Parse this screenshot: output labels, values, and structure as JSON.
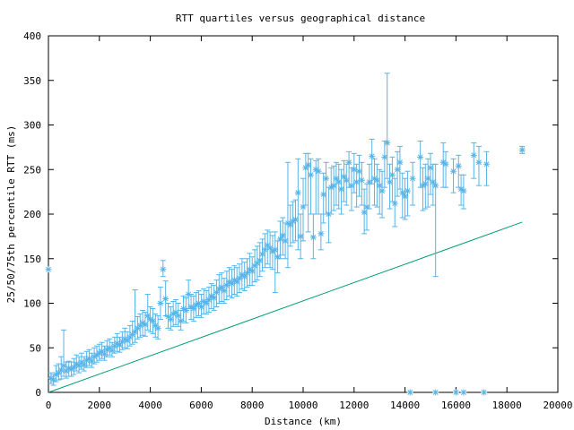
{
  "chart_data": {
    "type": "scatter",
    "title": "RTT quartiles versus geographical distance",
    "xlabel": "Distance (km)",
    "ylabel": "25/50/75th percentile RTT (ms)",
    "xlim": [
      0,
      20000
    ],
    "ylim": [
      0,
      400
    ],
    "xticks": [
      0,
      2000,
      4000,
      6000,
      8000,
      10000,
      12000,
      14000,
      16000,
      18000,
      20000
    ],
    "yticks": [
      0,
      50,
      100,
      150,
      200,
      250,
      300,
      350,
      400
    ],
    "grid": false,
    "legend": "none",
    "colors": {
      "points": "#56b4e9",
      "reference_line": "#009e73"
    },
    "series": [
      {
        "kind": "median_with_quartile_errorbars",
        "points": [
          [
            0,
            138,
            138,
            138
          ],
          [
            100,
            16,
            10,
            22
          ],
          [
            200,
            14,
            8,
            20
          ],
          [
            300,
            20,
            12,
            30
          ],
          [
            400,
            22,
            14,
            32
          ],
          [
            500,
            25,
            15,
            40
          ],
          [
            600,
            30,
            18,
            70
          ],
          [
            700,
            24,
            16,
            34
          ],
          [
            800,
            27,
            18,
            35
          ],
          [
            900,
            26,
            18,
            34
          ],
          [
            1000,
            28,
            20,
            38
          ],
          [
            1100,
            32,
            24,
            42
          ],
          [
            1200,
            30,
            22,
            40
          ],
          [
            1300,
            34,
            26,
            44
          ],
          [
            1400,
            31,
            24,
            40
          ],
          [
            1500,
            36,
            28,
            46
          ],
          [
            1600,
            38,
            30,
            48
          ],
          [
            1700,
            35,
            28,
            44
          ],
          [
            1800,
            40,
            32,
            50
          ],
          [
            1900,
            42,
            34,
            52
          ],
          [
            2000,
            44,
            36,
            54
          ],
          [
            2100,
            46,
            38,
            56
          ],
          [
            2200,
            43,
            36,
            52
          ],
          [
            2300,
            48,
            40,
            58
          ],
          [
            2400,
            50,
            42,
            60
          ],
          [
            2500,
            47,
            40,
            56
          ],
          [
            2600,
            52,
            44,
            62
          ],
          [
            2700,
            55,
            46,
            66
          ],
          [
            2800,
            53,
            45,
            62
          ],
          [
            2900,
            57,
            48,
            68
          ],
          [
            3000,
            60,
            50,
            72
          ],
          [
            3100,
            58,
            49,
            68
          ],
          [
            3200,
            62,
            52,
            75
          ],
          [
            3300,
            65,
            54,
            80
          ],
          [
            3400,
            68,
            56,
            115
          ],
          [
            3500,
            72,
            60,
            85
          ],
          [
            3600,
            75,
            62,
            88
          ],
          [
            3700,
            78,
            64,
            92
          ],
          [
            3800,
            76,
            63,
            90
          ],
          [
            3900,
            86,
            70,
            110
          ],
          [
            4000,
            82,
            68,
            96
          ],
          [
            4100,
            80,
            66,
            94
          ],
          [
            4200,
            75,
            62,
            88
          ],
          [
            4300,
            72,
            60,
            86
          ],
          [
            4400,
            100,
            82,
            118
          ],
          [
            4500,
            138,
            130,
            148
          ],
          [
            4600,
            105,
            86,
            125
          ],
          [
            4700,
            85,
            72,
            100
          ],
          [
            4800,
            82,
            70,
            96
          ],
          [
            4900,
            88,
            74,
            102
          ],
          [
            5000,
            90,
            76,
            104
          ],
          [
            5100,
            86,
            74,
            100
          ],
          [
            5200,
            80,
            70,
            92
          ],
          [
            5300,
            94,
            80,
            108
          ],
          [
            5400,
            92,
            78,
            106
          ],
          [
            5500,
            110,
            94,
            126
          ],
          [
            5600,
            96,
            82,
            110
          ],
          [
            5700,
            94,
            80,
            108
          ],
          [
            5800,
            98,
            84,
            112
          ],
          [
            5900,
            100,
            86,
            114
          ],
          [
            6000,
            96,
            84,
            110
          ],
          [
            6100,
            102,
            88,
            116
          ],
          [
            6200,
            100,
            88,
            114
          ],
          [
            6300,
            104,
            90,
            118
          ],
          [
            6400,
            108,
            94,
            122
          ],
          [
            6500,
            106,
            92,
            120
          ],
          [
            6600,
            112,
            96,
            126
          ],
          [
            6700,
            116,
            100,
            132
          ],
          [
            6800,
            118,
            102,
            134
          ],
          [
            6900,
            114,
            100,
            128
          ],
          [
            7000,
            120,
            104,
            136
          ],
          [
            7100,
            124,
            108,
            140
          ],
          [
            7200,
            122,
            106,
            138
          ],
          [
            7300,
            126,
            110,
            142
          ],
          [
            7400,
            124,
            108,
            140
          ],
          [
            7500,
            128,
            112,
            144
          ],
          [
            7600,
            132,
            116,
            150
          ],
          [
            7700,
            130,
            114,
            146
          ],
          [
            7800,
            134,
            118,
            150
          ],
          [
            7900,
            138,
            120,
            156
          ],
          [
            8000,
            136,
            120,
            152
          ],
          [
            8100,
            142,
            124,
            160
          ],
          [
            8200,
            145,
            126,
            164
          ],
          [
            8300,
            148,
            130,
            168
          ],
          [
            8400,
            155,
            136,
            172
          ],
          [
            8500,
            160,
            140,
            178
          ],
          [
            8600,
            165,
            144,
            182
          ],
          [
            8700,
            162,
            140,
            180
          ],
          [
            8800,
            158,
            138,
            176
          ],
          [
            8900,
            160,
            112,
            180
          ],
          [
            9000,
            152,
            134,
            170
          ],
          [
            9100,
            172,
            150,
            192
          ],
          [
            9200,
            176,
            154,
            196
          ],
          [
            9300,
            170,
            150,
            190
          ],
          [
            9400,
            190,
            140,
            258
          ],
          [
            9500,
            188,
            164,
            210
          ],
          [
            9600,
            192,
            168,
            214
          ],
          [
            9700,
            194,
            170,
            216
          ],
          [
            9800,
            224,
            160,
            262
          ],
          [
            9900,
            175,
            150,
            200
          ],
          [
            10000,
            208,
            170,
            240
          ],
          [
            10100,
            252,
            210,
            268
          ],
          [
            10200,
            255,
            180,
            268
          ],
          [
            10300,
            244,
            200,
            262
          ],
          [
            10400,
            174,
            150,
            200
          ],
          [
            10500,
            250,
            200,
            260
          ],
          [
            10600,
            248,
            200,
            262
          ],
          [
            10700,
            178,
            160,
            200
          ],
          [
            10800,
            222,
            190,
            246
          ],
          [
            10900,
            240,
            200,
            258
          ],
          [
            11000,
            200,
            168,
            230
          ],
          [
            11100,
            230,
            200,
            252
          ],
          [
            11200,
            232,
            204,
            254
          ],
          [
            11300,
            240,
            210,
            258
          ],
          [
            11400,
            236,
            206,
            256
          ],
          [
            11500,
            228,
            200,
            250
          ],
          [
            11600,
            242,
            214,
            260
          ],
          [
            11700,
            238,
            210,
            256
          ],
          [
            11800,
            258,
            230,
            270
          ],
          [
            11900,
            232,
            204,
            252
          ],
          [
            12000,
            250,
            224,
            268
          ],
          [
            12100,
            236,
            208,
            256
          ],
          [
            12200,
            248,
            220,
            266
          ],
          [
            12300,
            238,
            210,
            258
          ],
          [
            12400,
            202,
            178,
            228
          ],
          [
            12500,
            208,
            182,
            234
          ],
          [
            12600,
            236,
            206,
            256
          ],
          [
            12700,
            265,
            234,
            284
          ],
          [
            12800,
            240,
            210,
            262
          ],
          [
            12900,
            238,
            208,
            256
          ],
          [
            13000,
            232,
            200,
            250
          ],
          [
            13100,
            226,
            196,
            248
          ],
          [
            13200,
            264,
            230,
            282
          ],
          [
            13300,
            280,
            240,
            358
          ],
          [
            13400,
            236,
            206,
            256
          ],
          [
            13500,
            244,
            214,
            264
          ],
          [
            13600,
            212,
            186,
            240
          ],
          [
            13700,
            250,
            220,
            270
          ],
          [
            13800,
            258,
            228,
            276
          ],
          [
            13900,
            224,
            196,
            246
          ],
          [
            14000,
            220,
            194,
            240
          ],
          [
            14100,
            226,
            198,
            248
          ],
          [
            14300,
            240,
            210,
            258
          ],
          [
            14600,
            264,
            230,
            282
          ],
          [
            14700,
            232,
            204,
            252
          ],
          [
            14800,
            234,
            206,
            256
          ],
          [
            14900,
            240,
            208,
            262
          ],
          [
            15000,
            252,
            222,
            268
          ],
          [
            15100,
            236,
            210,
            256
          ],
          [
            15200,
            232,
            130,
            256
          ],
          [
            15500,
            258,
            230,
            280
          ],
          [
            15600,
            256,
            230,
            270
          ],
          [
            15900,
            248,
            224,
            262
          ],
          [
            16100,
            254,
            230,
            266
          ],
          [
            16200,
            228,
            210,
            244
          ],
          [
            16300,
            226,
            206,
            244
          ],
          [
            16700,
            266,
            240,
            280
          ],
          [
            16900,
            258,
            232,
            276
          ],
          [
            17200,
            256,
            232,
            270
          ],
          [
            18600,
            272,
            268,
            276
          ]
        ]
      },
      {
        "kind": "zero_markers",
        "points": [
          [
            14200,
            0
          ],
          [
            15200,
            0
          ],
          [
            16000,
            0
          ],
          [
            16300,
            0
          ],
          [
            17100,
            0
          ]
        ]
      },
      {
        "kind": "reference_line",
        "points": [
          [
            0,
            0
          ],
          [
            18600,
            191
          ]
        ]
      }
    ]
  }
}
